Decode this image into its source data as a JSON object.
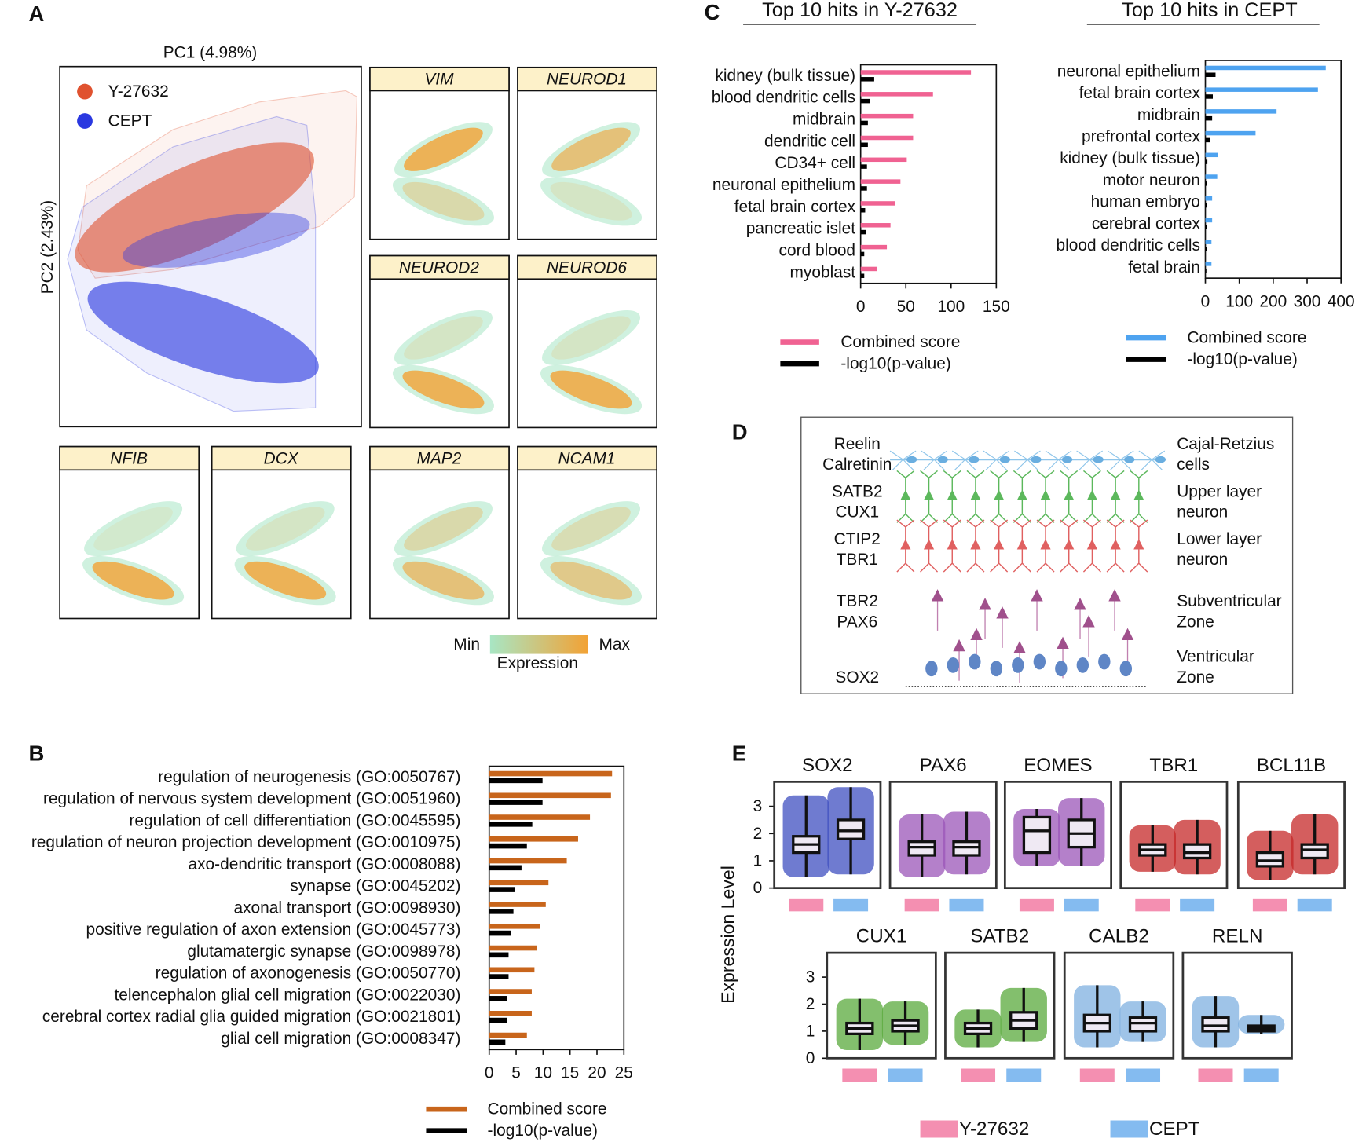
{
  "figure": {
    "labels": {
      "a": "A",
      "b": "B",
      "c": "C",
      "d": "D",
      "e": "E"
    },
    "panel_a": {
      "x_label": "PC1 (4.98%)",
      "y_label": "PC2 (2.43%)",
      "legend": [
        {
          "name": "Y-27632",
          "color": "#e0522f"
        },
        {
          "name": "CEPT",
          "color": "#2a38e0"
        }
      ],
      "genes": [
        "VIM",
        "NEUROD1",
        "NEUROD2",
        "NEUROD6",
        "NFIB",
        "DCX",
        "MAP2",
        "NCAM1"
      ],
      "colorbar": {
        "min": "Min",
        "max": "Max",
        "label": "Expression",
        "colors": [
          "#a8e6c4",
          "#f2a235"
        ]
      }
    },
    "panel_d": {
      "markers": [
        {
          "text": "Reelin",
          "color": "#4a56b0"
        },
        {
          "text": "Calretinin",
          "color": "#4a56b0"
        },
        {
          "text": "SATB2",
          "color": "#4fa83a"
        },
        {
          "text": "CUX1",
          "color": "#4fa83a"
        },
        {
          "text": "CTIP2",
          "color": "#c62a2a"
        },
        {
          "text": "TBR1",
          "color": "#c62a2a"
        },
        {
          "text": "TBR2",
          "color": "#cc22cc"
        },
        {
          "text": "PAX6",
          "color": "#cc22cc"
        },
        {
          "text": "SOX2",
          "color": "#4a56b0"
        }
      ],
      "layers": [
        "Cajal-Retzius",
        "cells",
        "Upper layer",
        "neuron",
        "Lower layer",
        "neuron",
        "Subventricular",
        "Zone",
        "Ventricular",
        "Zone"
      ]
    }
  },
  "chart_data": [
    {
      "type": "barh",
      "categories": [
        "regulation of neurogenesis (GO:0050767)",
        "regulation of nervous system development (GO:0051960)",
        "regulation of cell differentiation (GO:0045595)",
        "regulation of neuron projection development (GO:0010975)",
        "axo-dendritic transport (GO:0008088)",
        "synapse (GO:0045202)",
        "axonal transport (GO:0098930)",
        "positive regulation of axon extension (GO:0045773)",
        "glutamatergic synapse (GO:0098978)",
        "regulation of axonogenesis (GO:0050770)",
        "telencephalon glial cell migration (GO:0022030)",
        "cerebral cortex radial glia guided migration (GO:0021801)",
        "glial cell migration (GO:0008347)"
      ],
      "series": [
        {
          "name": "Combined score",
          "color": "#c8651b",
          "values": [
            22.8,
            22.6,
            18.7,
            16.5,
            14.4,
            11,
            10.5,
            9.5,
            8.8,
            8.4,
            7.9,
            7.9,
            7
          ]
        },
        {
          "name": "-log10(p-value)",
          "color": "#000000",
          "values": [
            9.9,
            9.9,
            8,
            7,
            6,
            4.7,
            4.5,
            4.1,
            3.6,
            3.6,
            3.3,
            3.3,
            3
          ]
        }
      ],
      "xlim": [
        0,
        25
      ],
      "xticks": [
        0,
        5,
        10,
        15,
        20,
        25
      ]
    },
    {
      "type": "barh",
      "title": "Top 10 hits in Y-27632",
      "categories": [
        "kidney (bulk tissue)",
        "blood dendritic cells",
        "midbrain",
        "dendritic cell",
        "CD34+ cell",
        "neuronal epithelium",
        "fetal brain cortex",
        "pancreatic islet",
        "cord blood",
        "myoblast"
      ],
      "series": [
        {
          "name": "Combined score",
          "color": "#f06292",
          "values": [
            122,
            80,
            58,
            58,
            51,
            44,
            38,
            33,
            29,
            18
          ]
        },
        {
          "name": "-log10(p-value)",
          "color": "#000000",
          "values": [
            15,
            10,
            8,
            8,
            7,
            7,
            5,
            6,
            4,
            4
          ]
        }
      ],
      "xlim": [
        0,
        150
      ],
      "xticks": [
        0,
        50,
        100,
        150
      ]
    },
    {
      "type": "barh",
      "title": "Top 10 hits in CEPT",
      "categories": [
        "neuronal epithelium",
        "fetal brain cortex",
        "midbrain",
        "prefrontal cortex",
        "kidney (bulk tissue)",
        "motor neuron",
        "human embryo",
        "cerebral cortex",
        "blood dendritic cells",
        "fetal brain"
      ],
      "series": [
        {
          "name": "Combined score",
          "color": "#4ea3f0",
          "values": [
            355,
            332,
            210,
            148,
            38,
            35,
            20,
            20,
            18,
            18
          ]
        },
        {
          "name": "-log10(p-value)",
          "color": "#000000",
          "values": [
            30,
            22,
            20,
            15,
            6,
            5,
            4,
            4,
            4,
            3
          ]
        }
      ],
      "xlim": [
        0,
        400
      ],
      "xticks": [
        0,
        100,
        200,
        300,
        400
      ]
    },
    {
      "type": "box",
      "y_label": "Expression Level",
      "ylim": [
        0,
        3.9
      ],
      "yticks": [
        0,
        1,
        2,
        3
      ],
      "series": [
        {
          "name": "Y-27632",
          "color": "#f48fb1"
        },
        {
          "name": "CEPT",
          "color": "#84bbf0"
        }
      ],
      "panels": [
        {
          "title": "SOX2",
          "color": "#3f4fc0",
          "boxes": [
            {
              "whislo": 0.4,
              "q1": 1.3,
              "med": 1.6,
              "q3": 1.9,
              "whishi": 3.4
            },
            {
              "whislo": 0.5,
              "q1": 1.8,
              "med": 2.1,
              "q3": 2.5,
              "whishi": 3.7
            }
          ]
        },
        {
          "title": "PAX6",
          "color": "#9b55b8",
          "boxes": [
            {
              "whislo": 0.4,
              "q1": 1.2,
              "med": 1.5,
              "q3": 1.7,
              "whishi": 2.7
            },
            {
              "whislo": 0.5,
              "q1": 1.2,
              "med": 1.5,
              "q3": 1.7,
              "whishi": 2.8
            }
          ]
        },
        {
          "title": "EOMES",
          "color": "#9b55b8",
          "boxes": [
            {
              "whislo": 0.8,
              "q1": 1.3,
              "med": 2.1,
              "q3": 2.6,
              "whishi": 2.9
            },
            {
              "whislo": 0.8,
              "q1": 1.5,
              "med": 2,
              "q3": 2.5,
              "whishi": 3.3
            }
          ]
        },
        {
          "title": "TBR1",
          "color": "#c62828",
          "boxes": [
            {
              "whislo": 0.6,
              "q1": 1.2,
              "med": 1.4,
              "q3": 1.6,
              "whishi": 2.3
            },
            {
              "whislo": 0.5,
              "q1": 1.1,
              "med": 1.3,
              "q3": 1.6,
              "whishi": 2.5
            }
          ]
        },
        {
          "title": "BCL11B",
          "color": "#c62828",
          "boxes": [
            {
              "whislo": 0.3,
              "q1": 0.8,
              "med": 1,
              "q3": 1.3,
              "whishi": 2.1
            },
            {
              "whislo": 0.5,
              "q1": 1.1,
              "med": 1.4,
              "q3": 1.6,
              "whishi": 2.7
            }
          ]
        },
        {
          "title": "CUX1",
          "color": "#5aaa3c",
          "boxes": [
            {
              "whislo": 0.3,
              "q1": 0.9,
              "med": 1.1,
              "q3": 1.3,
              "whishi": 2.2
            },
            {
              "whislo": 0.5,
              "q1": 1,
              "med": 1.2,
              "q3": 1.4,
              "whishi": 2.1
            }
          ]
        },
        {
          "title": "SATB2",
          "color": "#5aaa3c",
          "boxes": [
            {
              "whislo": 0.4,
              "q1": 0.9,
              "med": 1.1,
              "q3": 1.3,
              "whishi": 1.8
            },
            {
              "whislo": 0.6,
              "q1": 1.1,
              "med": 1.4,
              "q3": 1.7,
              "whishi": 2.6
            }
          ]
        },
        {
          "title": "CALB2",
          "color": "#7fb0e0",
          "boxes": [
            {
              "whislo": 0.4,
              "q1": 1,
              "med": 1.3,
              "q3": 1.6,
              "whishi": 2.7
            },
            {
              "whislo": 0.6,
              "q1": 1,
              "med": 1.3,
              "q3": 1.5,
              "whishi": 2.1
            }
          ]
        },
        {
          "title": "RELN",
          "color": "#7fb0e0",
          "boxes": [
            {
              "whislo": 0.4,
              "q1": 1,
              "med": 1.2,
              "q3": 1.5,
              "whishi": 2.3
            },
            {
              "whislo": 0.9,
              "q1": 1,
              "med": 1.1,
              "q3": 1.2,
              "whishi": 1.6
            }
          ]
        }
      ]
    }
  ]
}
